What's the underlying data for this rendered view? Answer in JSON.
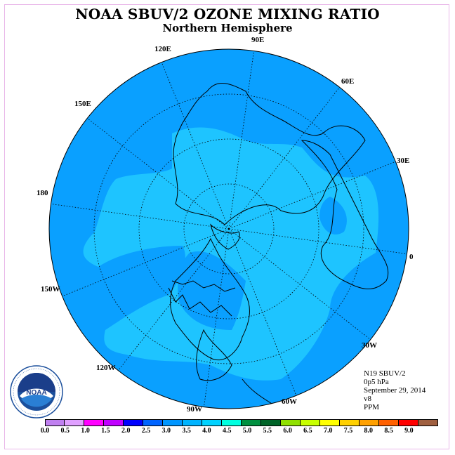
{
  "header": {
    "title": "NOAA SBUV/2 OZONE MIXING RATIO",
    "subtitle": "Northern Hemisphere"
  },
  "longitudes": [
    "90E",
    "60E",
    "30E",
    "0",
    "30W",
    "60W",
    "90W",
    "120W",
    "150W",
    "180",
    "150E",
    "120E"
  ],
  "info": {
    "line1": "N19 SBUV/2",
    "line2": "0p5 hPa",
    "line3": "September 29, 2014",
    "line4": "v8",
    "line5": "PPM"
  },
  "colorbar": {
    "colors": [
      "#c080f0",
      "#e0a0ff",
      "#ff00ff",
      "#c000ff",
      "#0000ff",
      "#0064ff",
      "#0096ff",
      "#00b4ff",
      "#00d2ff",
      "#00ffe0",
      "#009040",
      "#006428",
      "#90e000",
      "#c8ff00",
      "#ffff00",
      "#ffd000",
      "#ffa000",
      "#ff6000",
      "#ff0000",
      "#a06040"
    ],
    "labels": [
      "0.0",
      "0.5",
      "1.0",
      "1.5",
      "2.0",
      "2.5",
      "3.0",
      "3.5",
      "4.0",
      "4.5",
      "5.0",
      "5.5",
      "6.0",
      "6.5",
      "7.0",
      "7.5",
      "8.0",
      "8.5",
      "9.0"
    ]
  },
  "map": {
    "outer_color": "#0aa0ff",
    "inner_color": "#1ec4ff",
    "outer_level": "2.5-3.0",
    "inner_level": "3.0-3.5"
  },
  "logo": {
    "text": "NOAA"
  }
}
